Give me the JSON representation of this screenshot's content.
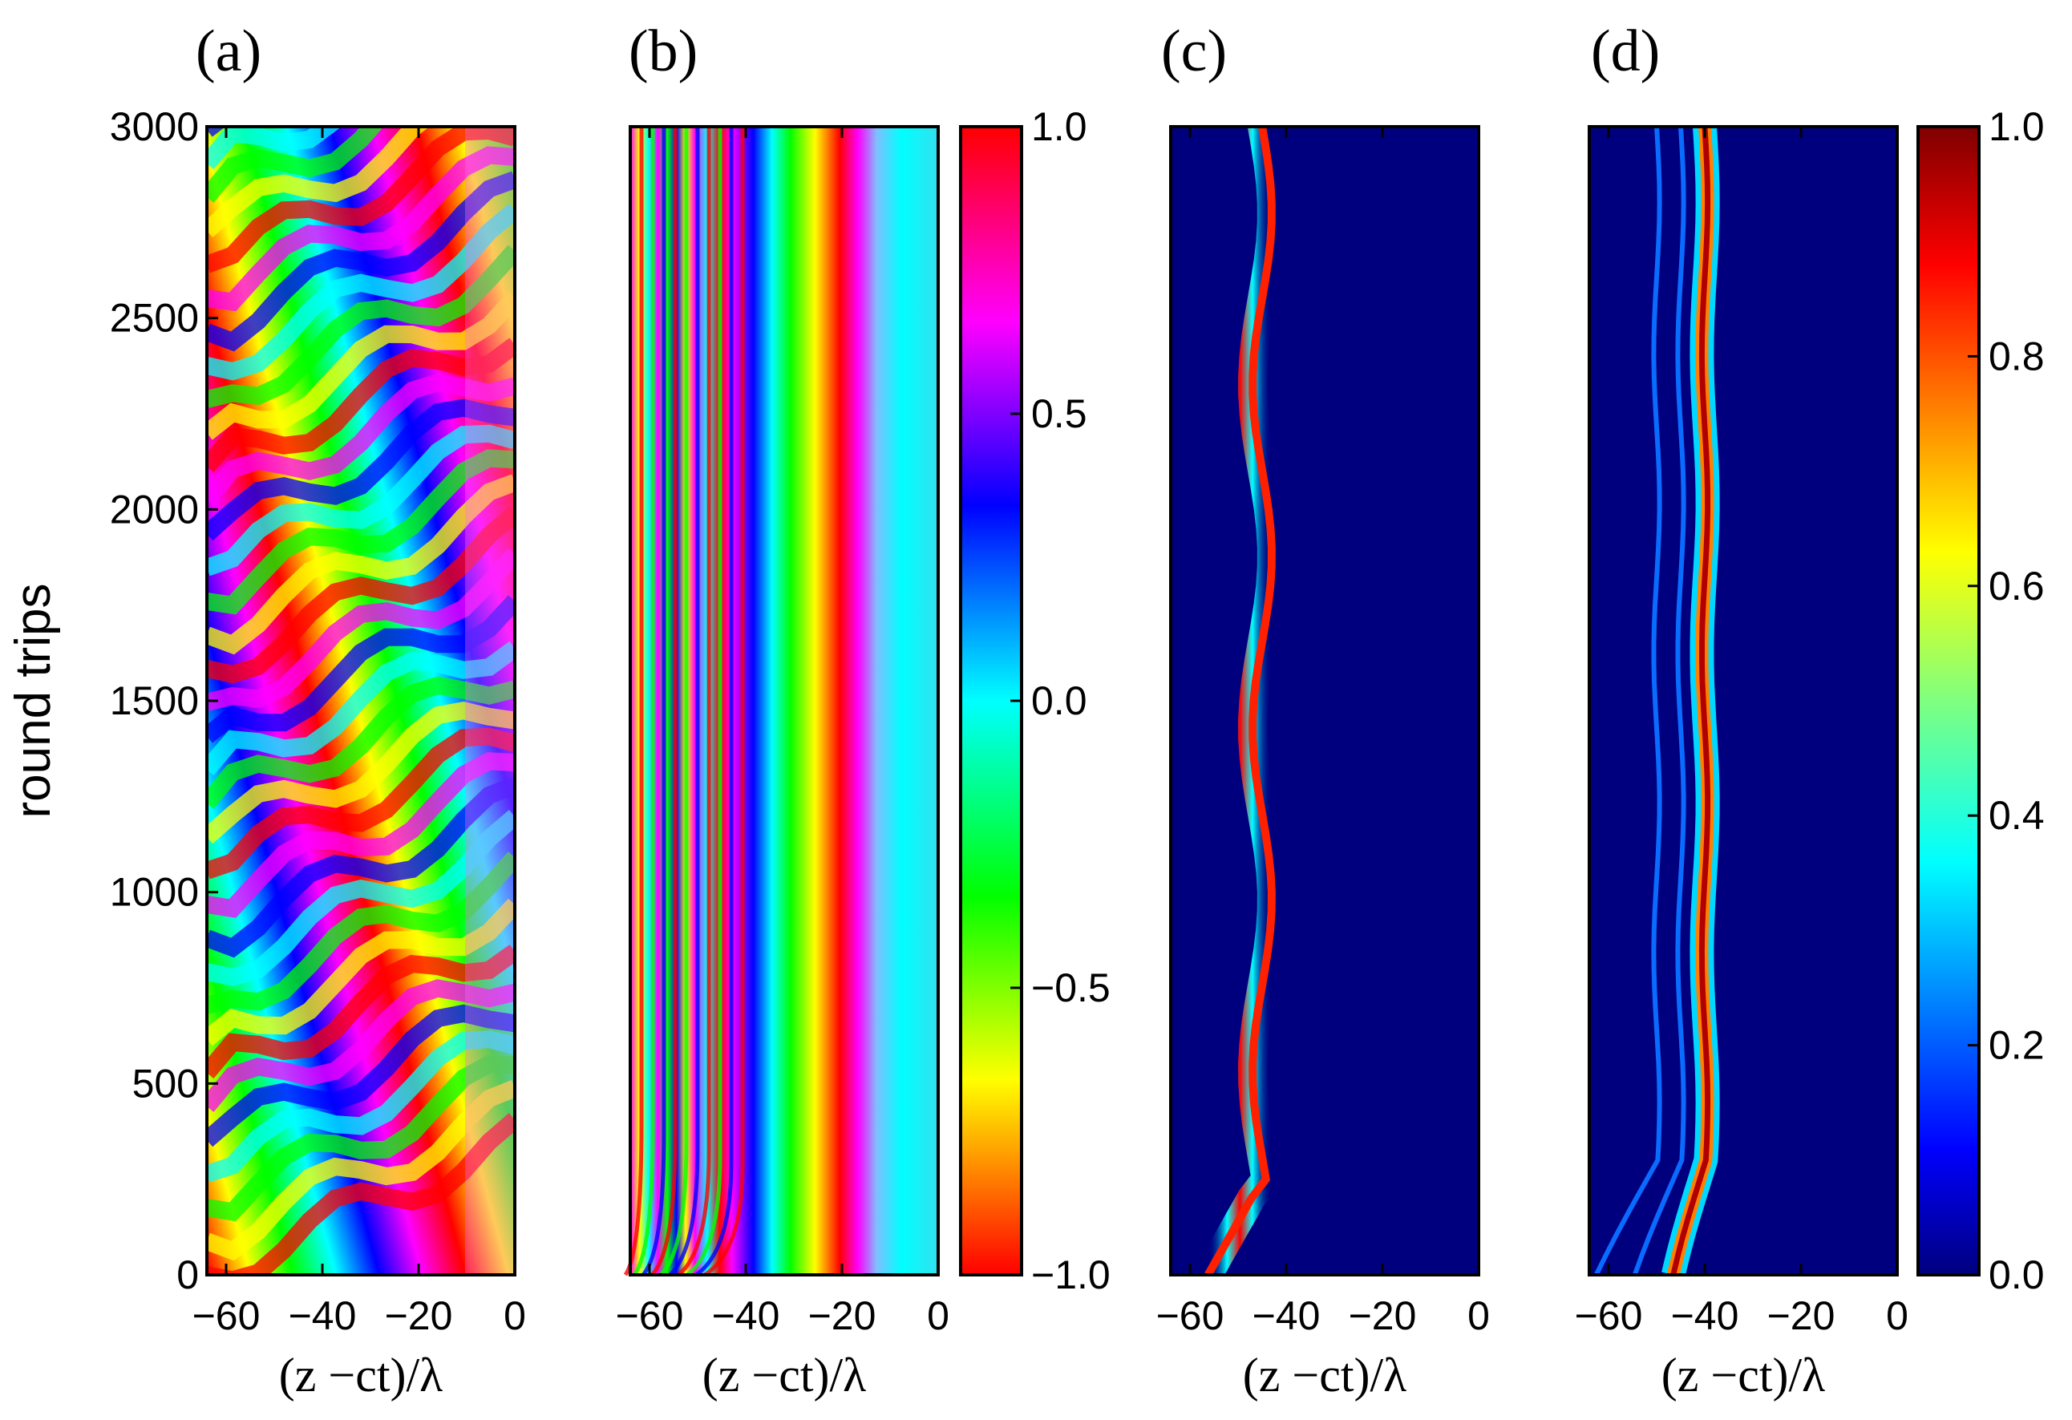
{
  "chart_data": [
    {
      "type": "heatmap",
      "panel_label": "(a)",
      "xlabel": "(z −ct)/λ",
      "ylabel": "round trips",
      "xlim": [
        -64,
        0
      ],
      "ylim": [
        0,
        3000
      ],
      "xticks": [
        "−60",
        "−40",
        "−20",
        "0"
      ],
      "xtick_values": [
        -60,
        -40,
        -20,
        0
      ],
      "yticks": [
        "0",
        "500",
        "1000",
        "1500",
        "2000",
        "2500",
        "3000"
      ],
      "ytick_values": [
        0,
        500,
        1000,
        1500,
        2000,
        2500,
        3000
      ],
      "colormap": "hsv",
      "description_values": "phase field, irregular diagonal stripes, noisy near 0"
    },
    {
      "type": "heatmap",
      "panel_label": "(b)",
      "xlabel": "(z −ct)/λ",
      "ylabel": "",
      "xlim": [
        -64,
        0
      ],
      "ylim": [
        0,
        3000
      ],
      "xticks": [
        "−60",
        "−40",
        "−20",
        "0"
      ],
      "xtick_values": [
        -60,
        -40,
        -20,
        0
      ],
      "colormap": "hsv",
      "colorbar": {
        "range": [
          -1.0,
          1.0
        ],
        "ticks": [
          "1.0",
          "0.5",
          "0.0",
          "−0.5",
          "−1.0"
        ],
        "tick_values": [
          1.0,
          0.5,
          0.0,
          -0.5,
          -1.0
        ]
      }
    },
    {
      "type": "heatmap",
      "panel_label": "(c)",
      "xlabel": "(z −ct)/λ",
      "ylabel": "",
      "xlim": [
        -64,
        0
      ],
      "ylim": [
        0,
        3000
      ],
      "xticks": [
        "−60",
        "−40",
        "−20",
        "0"
      ],
      "xtick_values": [
        -60,
        -40,
        -20,
        0
      ],
      "colormap": "jet",
      "pulse_center_approx": -45
    },
    {
      "type": "heatmap",
      "panel_label": "(d)",
      "xlabel": "(z −ct)/λ",
      "ylabel": "",
      "xlim": [
        -64,
        0
      ],
      "ylim": [
        0,
        3000
      ],
      "xticks": [
        "−60",
        "−40",
        "−20",
        "0"
      ],
      "xtick_values": [
        -60,
        -40,
        -20,
        0
      ],
      "colormap": "jet",
      "pulse_center_approx": -40,
      "colorbar": {
        "range": [
          0.0,
          1.0
        ],
        "ticks": [
          "1.0",
          "0.8",
          "0.6",
          "0.4",
          "0.2",
          "0.0"
        ],
        "tick_values": [
          1.0,
          0.8,
          0.6,
          0.4,
          0.2,
          0.0
        ]
      }
    }
  ]
}
